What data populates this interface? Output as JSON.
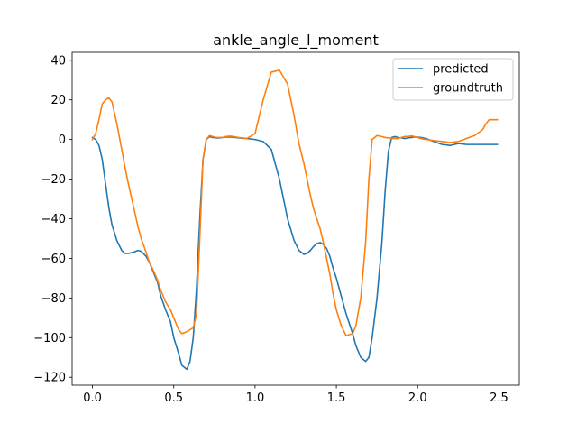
{
  "chart_data": {
    "type": "line",
    "title": "ankle_angle_l_moment",
    "xlabel": "",
    "ylabel": "",
    "xlim": [
      -0.125,
      2.625
    ],
    "ylim": [
      -124,
      44
    ],
    "xticks": [
      0.0,
      0.5,
      1.0,
      1.5,
      2.0,
      2.5
    ],
    "xtick_labels": [
      "0.0",
      "0.5",
      "1.0",
      "1.5",
      "2.0",
      "2.5"
    ],
    "yticks": [
      40,
      20,
      0,
      -20,
      -40,
      -60,
      -80,
      -100,
      -120
    ],
    "ytick_labels": [
      "40",
      "20",
      "0",
      "−20",
      "−40",
      "−60",
      "−80",
      "−100",
      "−120"
    ],
    "grid": false,
    "legend_position": "top-right",
    "series": [
      {
        "name": "predicted",
        "color": "#1f77b4",
        "x": [
          0.0,
          0.02,
          0.04,
          0.06,
          0.08,
          0.1,
          0.12,
          0.15,
          0.18,
          0.2,
          0.22,
          0.25,
          0.28,
          0.3,
          0.33,
          0.35,
          0.38,
          0.4,
          0.42,
          0.45,
          0.48,
          0.5,
          0.53,
          0.55,
          0.58,
          0.6,
          0.62,
          0.64,
          0.66,
          0.68,
          0.7,
          0.72,
          0.74,
          0.76,
          0.78,
          0.8,
          0.82,
          0.85,
          0.9,
          0.95,
          1.0,
          1.05,
          1.1,
          1.15,
          1.2,
          1.24,
          1.27,
          1.3,
          1.32,
          1.34,
          1.36,
          1.38,
          1.4,
          1.42,
          1.44,
          1.46,
          1.48,
          1.5,
          1.53,
          1.56,
          1.6,
          1.62,
          1.65,
          1.68,
          1.7,
          1.72,
          1.75,
          1.78,
          1.8,
          1.82,
          1.84,
          1.86,
          1.88,
          1.9,
          1.92,
          1.94,
          1.96,
          1.98,
          2.0,
          2.02,
          2.05,
          2.1,
          2.15,
          2.2,
          2.25,
          2.3,
          2.35,
          2.4,
          2.42,
          2.44,
          2.46,
          2.48,
          2.49
        ],
        "y": [
          1,
          0,
          -3,
          -10,
          -22,
          -34,
          -43,
          -51,
          -56,
          -57.5,
          -57.5,
          -57,
          -56,
          -56.5,
          -59,
          -62,
          -68,
          -72,
          -79,
          -86,
          -92,
          -100,
          -108,
          -114,
          -116,
          -112,
          -100,
          -75,
          -40,
          -10,
          0,
          1.5,
          1,
          0.8,
          0.8,
          1,
          1.2,
          1.2,
          0.8,
          0.5,
          0,
          -1,
          -5,
          -20,
          -40,
          -51,
          -56,
          -58,
          -57.5,
          -56,
          -54,
          -52.5,
          -52,
          -53,
          -55,
          -59,
          -65,
          -70,
          -79,
          -88,
          -98,
          -104,
          -110,
          -112,
          -110,
          -100,
          -80,
          -52,
          -26,
          -6,
          1,
          1.5,
          1,
          0.8,
          0.5,
          0.8,
          1,
          1.3,
          1.2,
          1,
          0.5,
          -1,
          -2.5,
          -3,
          -2,
          -2.5,
          -2.5,
          -2.5,
          -2.5,
          -2.5,
          -2.5,
          -2.5,
          -2.5
        ]
      },
      {
        "name": "groundtruth",
        "color": "#ff7f0e",
        "x": [
          0.0,
          0.02,
          0.04,
          0.06,
          0.08,
          0.1,
          0.12,
          0.15,
          0.18,
          0.2,
          0.22,
          0.25,
          0.28,
          0.3,
          0.33,
          0.35,
          0.38,
          0.4,
          0.42,
          0.45,
          0.48,
          0.5,
          0.53,
          0.55,
          0.58,
          0.6,
          0.62,
          0.64,
          0.66,
          0.68,
          0.7,
          0.72,
          0.74,
          0.76,
          0.78,
          0.8,
          0.82,
          0.85,
          0.9,
          0.95,
          1.0,
          1.05,
          1.1,
          1.15,
          1.2,
          1.24,
          1.27,
          1.3,
          1.32,
          1.34,
          1.36,
          1.38,
          1.4,
          1.42,
          1.44,
          1.46,
          1.48,
          1.5,
          1.53,
          1.56,
          1.6,
          1.62,
          1.65,
          1.68,
          1.7,
          1.72,
          1.75,
          1.78,
          1.8,
          1.82,
          1.84,
          1.86,
          1.88,
          1.9,
          1.92,
          1.94,
          1.96,
          1.98,
          2.0,
          2.02,
          2.05,
          2.1,
          2.15,
          2.2,
          2.25,
          2.3,
          2.35,
          2.4,
          2.42,
          2.44,
          2.46,
          2.48,
          2.49
        ],
        "y": [
          0,
          3,
          10,
          18,
          20,
          21,
          19,
          8,
          -5,
          -14,
          -22,
          -33,
          -44,
          -50,
          -57,
          -62,
          -67,
          -71,
          -76,
          -82,
          -86,
          -90,
          -96,
          -98,
          -97,
          -96,
          -95,
          -88,
          -50,
          -10,
          0,
          2,
          1.5,
          1,
          1,
          1,
          1.5,
          1.7,
          1,
          0.5,
          3,
          20,
          34,
          35,
          28,
          12,
          -2,
          -12,
          -20,
          -28,
          -35,
          -40,
          -45,
          -52,
          -60,
          -68,
          -78,
          -86,
          -94,
          -99,
          -98,
          -94,
          -80,
          -52,
          -20,
          0,
          2,
          1.5,
          1,
          0.8,
          0.5,
          0.5,
          0.5,
          1,
          1.5,
          1.5,
          1.8,
          1.5,
          1,
          0.5,
          0,
          -0.5,
          -1,
          -1.5,
          -1,
          0.5,
          2,
          5,
          8,
          10,
          10,
          10,
          10
        ]
      }
    ]
  }
}
